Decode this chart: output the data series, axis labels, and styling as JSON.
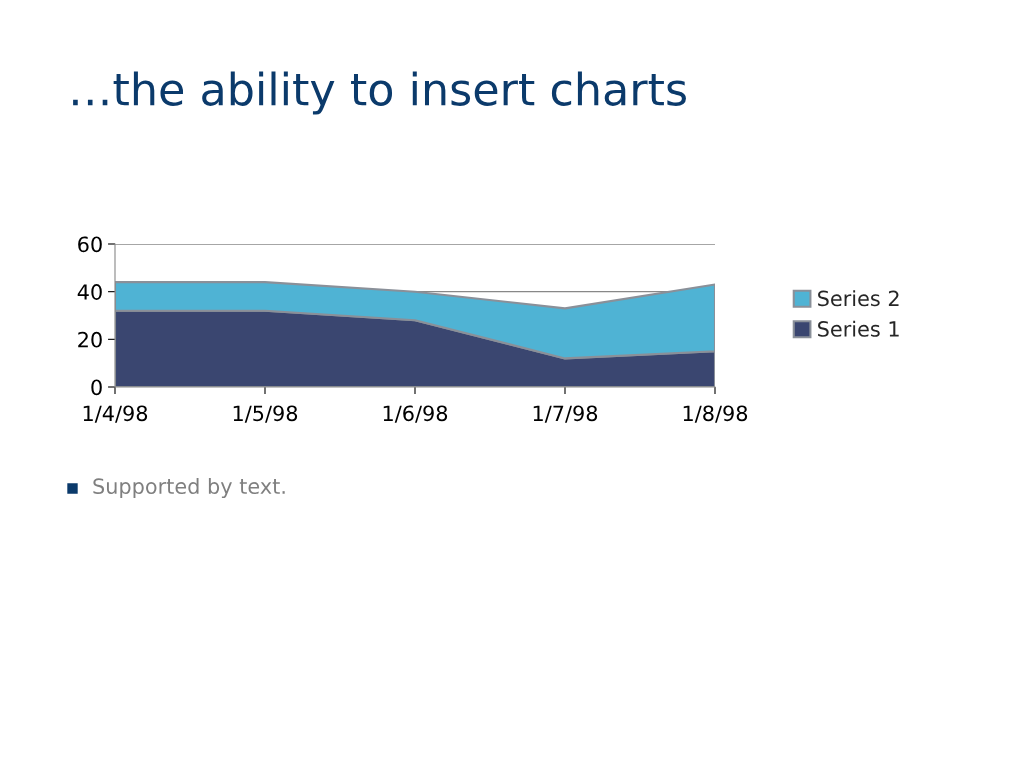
{
  "chart_data": {
    "type": "area",
    "title": "…the ability to insert charts",
    "stacked": true,
    "categories": [
      "1/4/98",
      "1/5/98",
      "1/6/98",
      "1/7/98",
      "1/8/98"
    ],
    "series": [
      {
        "name": "Series 1",
        "color": "#3a4670",
        "values": [
          32,
          32,
          28,
          12,
          15
        ]
      },
      {
        "name": "Series 2",
        "color": "#4fb3d4",
        "values": [
          12,
          12,
          12,
          21,
          28
        ]
      }
    ],
    "ylim": [
      0,
      60
    ],
    "yticks": [
      0,
      20,
      40,
      60
    ],
    "grid": "y",
    "legend": "right",
    "annotations": [
      "Supported by text."
    ]
  }
}
